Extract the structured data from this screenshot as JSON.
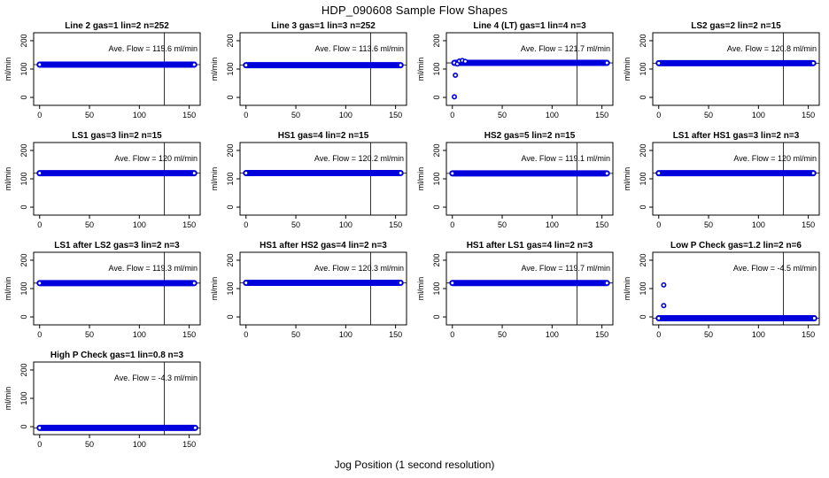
{
  "page": {
    "title": "HDP_090608  Sample Flow Shapes",
    "xlabel": "Jog Position (1 second resolution)"
  },
  "colors": {
    "point_blue": "#0000dd",
    "axis_black": "#000000",
    "background": "#ffffff"
  },
  "chart_data": {
    "type": "scatter",
    "title": "HDP_090608  Sample Flow Shapes",
    "xlabel": "Jog Position (1 second resolution)",
    "ylabel": "ml/min",
    "xlim": [
      -6,
      161
    ],
    "ylim": [
      -28,
      228
    ],
    "x_ticks": [
      0,
      50,
      100,
      150
    ],
    "y_ticks": [
      0,
      100,
      200
    ],
    "vline_x": 125,
    "grid": false,
    "legend": "none",
    "panels": [
      {
        "title": "Line 2 gas=1 lin=2 n=252",
        "ave_flow": 115.6,
        "annotation": "Ave. Flow =  115.6  ml/min",
        "band_x": [
          0,
          155
        ],
        "band_level": 115.6,
        "points": []
      },
      {
        "title": "Line 3 gas=1 lin=3 n=252",
        "ave_flow": 113.6,
        "annotation": "Ave. Flow =  113.6  ml/min",
        "band_x": [
          0,
          155
        ],
        "band_level": 113.6,
        "points": []
      },
      {
        "title": "Line 4 (LT) gas=1 lin=4 n=3",
        "ave_flow": 121.7,
        "annotation": "Ave. Flow =  121.7  ml/min",
        "band_x": [
          2,
          155
        ],
        "band_level": 121.7,
        "points": [
          [
            2,
            2
          ],
          [
            3,
            78
          ],
          [
            5,
            118
          ],
          [
            7,
            128
          ],
          [
            10,
            130
          ],
          [
            13,
            127
          ]
        ]
      },
      {
        "title": "LS2 gas=2 lin=2 n=15",
        "ave_flow": 120.8,
        "annotation": "Ave. Flow =  120.8  ml/min",
        "band_x": [
          0,
          155
        ],
        "band_level": 120.8,
        "points": []
      },
      {
        "title": "LS1 gas=3 lin=2 n=15",
        "ave_flow": 120,
        "annotation": "Ave. Flow =  120  ml/min",
        "band_x": [
          0,
          155
        ],
        "band_level": 120,
        "points": []
      },
      {
        "title": "HS1 gas=4 lin=2 n=15",
        "ave_flow": 120.2,
        "annotation": "Ave. Flow =  120.2  ml/min",
        "band_x": [
          0,
          155
        ],
        "band_level": 120.2,
        "points": []
      },
      {
        "title": "HS2 gas=5 lin=2 n=15",
        "ave_flow": 119.1,
        "annotation": "Ave. Flow =  119.1  ml/min",
        "band_x": [
          0,
          155
        ],
        "band_level": 119.1,
        "points": []
      },
      {
        "title": "LS1 after HS1 gas=3 lin=2 n=3",
        "ave_flow": 120,
        "annotation": "Ave. Flow =  120  ml/min",
        "band_x": [
          0,
          155
        ],
        "band_level": 120,
        "points": []
      },
      {
        "title": "LS1 after LS2 gas=3 lin=2 n=3",
        "ave_flow": 119.3,
        "annotation": "Ave. Flow =  119.3  ml/min",
        "band_x": [
          0,
          155
        ],
        "band_level": 119.3,
        "points": []
      },
      {
        "title": "HS1 after HS2 gas=4 lin=2 n=3",
        "ave_flow": 120.3,
        "annotation": "Ave. Flow =  120.3  ml/min",
        "band_x": [
          0,
          155
        ],
        "band_level": 120.3,
        "points": []
      },
      {
        "title": "HS1 after LS1 gas=4 lin=2 n=3",
        "ave_flow": 119.7,
        "annotation": "Ave. Flow =  119.7  ml/min",
        "band_x": [
          0,
          155
        ],
        "band_level": 119.7,
        "points": []
      },
      {
        "title": "Low P Check gas=1.2 lin=2 n=6",
        "ave_flow": -4.5,
        "annotation": "Ave. Flow =  -4.5  ml/min",
        "band_x": [
          0,
          156
        ],
        "band_level": -4.5,
        "points": [
          [
            5,
            113
          ],
          [
            5,
            40
          ]
        ]
      },
      {
        "title": "High P Check gas=1 lin=0.8 n=3",
        "ave_flow": -4.3,
        "annotation": "Ave. Flow =  -4.3  ml/min",
        "band_x": [
          0,
          156
        ],
        "band_level": -4.3,
        "points": []
      }
    ]
  }
}
